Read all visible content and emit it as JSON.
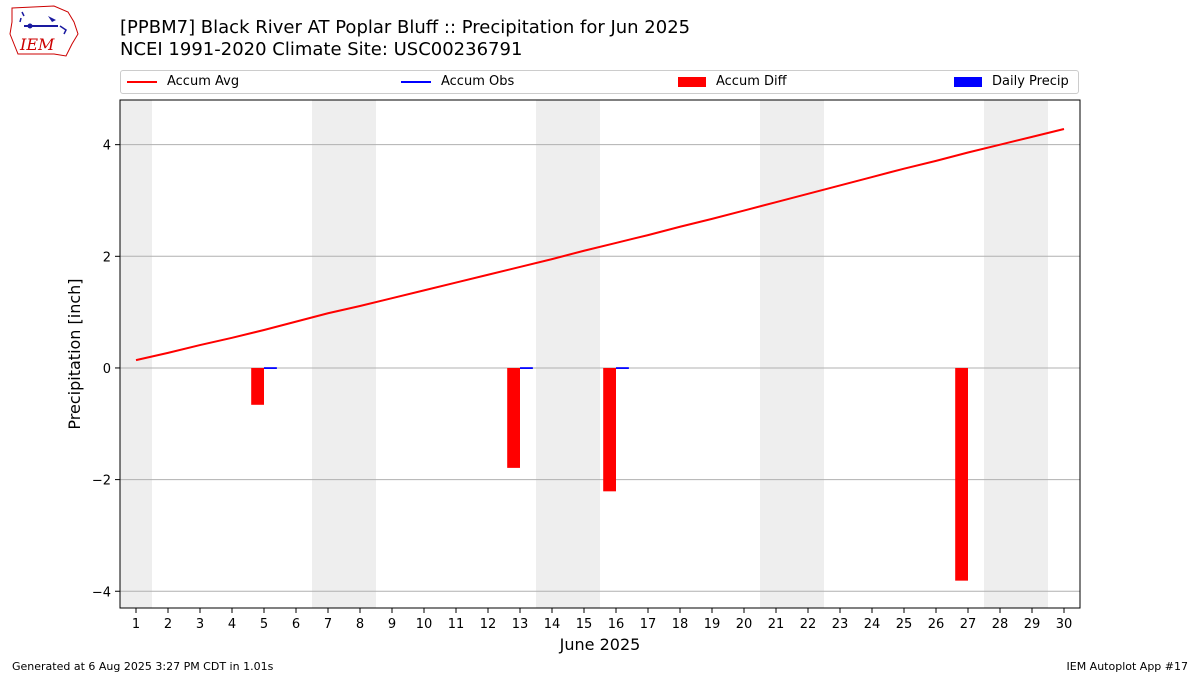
{
  "header": {
    "title_line1": "[PPBM7] Black River  AT Poplar Bluff :: Precipitation for Jun 2025",
    "title_line2": "NCEI 1991-2020 Climate Site: USC00236791",
    "logo_text": "IEM"
  },
  "footer": {
    "generated": "Generated at 6 Aug 2025 3:27 PM CDT in 1.01s",
    "app": "IEM Autoplot App #17"
  },
  "colors": {
    "accum_avg": "#ff0000",
    "accum_obs": "#0000ff",
    "accum_diff": "#ff0000",
    "daily_precip": "#0000ff",
    "weekend_shade": "#eeeeee",
    "grid": "#b0b0b0"
  },
  "chart_data": {
    "type": "bar",
    "title": "[PPBM7] Black River  AT Poplar Bluff :: Precipitation for Jun 2025",
    "subtitle": "NCEI 1991-2020 Climate Site: USC00236791",
    "xlabel": "June 2025",
    "ylabel": "Precipitation [inch]",
    "ylim": [
      -4.3,
      4.8
    ],
    "yticks": [
      -4,
      -2,
      0,
      2,
      4
    ],
    "ytick_labels": [
      "−4",
      "−2",
      "0",
      "2",
      "4"
    ],
    "xlim": [
      0.5,
      30.5
    ],
    "days": [
      1,
      2,
      3,
      4,
      5,
      6,
      7,
      8,
      9,
      10,
      11,
      12,
      13,
      14,
      15,
      16,
      17,
      18,
      19,
      20,
      21,
      22,
      23,
      24,
      25,
      26,
      27,
      28,
      29,
      30
    ],
    "grid": "horizontal",
    "legend_placement": "top",
    "weekend_spans": [
      [
        0.5,
        1.5
      ],
      [
        6.5,
        8.5
      ],
      [
        13.5,
        15.5
      ],
      [
        20.5,
        22.5
      ],
      [
        27.5,
        29.5
      ]
    ],
    "legend": [
      "Accum Avg",
      "Accum Obs",
      "Accum Diff",
      "Daily Precip"
    ],
    "series": [
      {
        "name": "Accum Avg",
        "kind": "line",
        "x": [
          1,
          2,
          3,
          4,
          5,
          6,
          7,
          8,
          9,
          10,
          11,
          12,
          13,
          14,
          15,
          16,
          17,
          18,
          19,
          20,
          21,
          22,
          23,
          24,
          25,
          26,
          27,
          28,
          29,
          30
        ],
        "values": [
          0.14,
          0.27,
          0.41,
          0.54,
          0.68,
          0.83,
          0.98,
          1.11,
          1.25,
          1.39,
          1.53,
          1.67,
          1.81,
          1.95,
          2.1,
          2.24,
          2.38,
          2.53,
          2.67,
          2.82,
          2.97,
          3.12,
          3.27,
          3.42,
          3.57,
          3.71,
          3.86,
          4.0,
          4.14,
          4.28
        ]
      },
      {
        "name": "Accum Obs",
        "kind": "line",
        "x": [
          5,
          13,
          16
        ],
        "values": [
          0.0,
          0.0,
          0.0
        ]
      },
      {
        "name": "Accum Diff",
        "kind": "bar",
        "x": [
          5,
          13,
          16,
          27
        ],
        "values": [
          -0.66,
          -1.79,
          -2.21,
          -3.81
        ]
      },
      {
        "name": "Daily Precip",
        "kind": "bar",
        "x": [
          5,
          13,
          16
        ],
        "values": [
          0.0,
          0.0,
          0.0
        ]
      }
    ]
  }
}
